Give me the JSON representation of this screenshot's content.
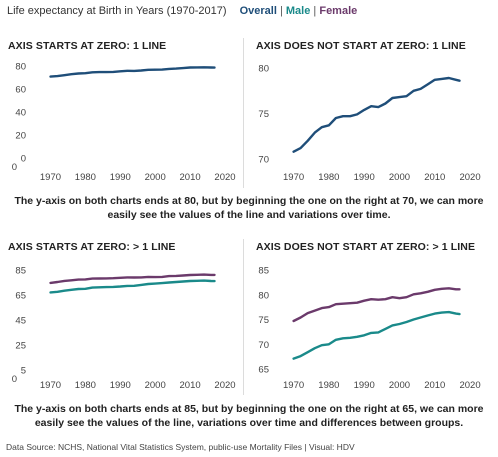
{
  "header": {
    "title": "Life expectancy at Birth in Years (1970-2017)",
    "legend": [
      {
        "label": "Overall",
        "color": "#1f4e79"
      },
      {
        "label": "Male",
        "color": "#1a8a8a"
      },
      {
        "label": "Female",
        "color": "#6b3a6b"
      }
    ],
    "separator": "|"
  },
  "captions": {
    "top": "The y-axis on both charts ends at 80, but by beginning the one on the right at 70, we can more easily see the values of the line and variations over time.",
    "bottom": "The y-axis on both charts ends at 85, but by beginning the one on the right at 65, we can more easily see the values of the line, variations over time and differences between groups."
  },
  "footer": "Data Source: NCHS, National Vital Statistics System, public-use Mortality Files  |  Visual: HDV",
  "chart_data": [
    {
      "type": "line",
      "title": "AXIS STARTS AT ZERO: 1 LINE",
      "xlim": [
        1967,
        2018
      ],
      "ylim": [
        0,
        80
      ],
      "yticks": [
        "80",
        "60",
        "40",
        "20",
        "0"
      ],
      "ytick_values": [
        80,
        60,
        40,
        20,
        0
      ],
      "xticks": [
        "1970",
        "1980",
        "1990",
        "2000",
        "2010",
        "2020"
      ],
      "xtick_values": [
        1970,
        1980,
        1990,
        2000,
        2010,
        2020
      ],
      "extra_label": "0",
      "series": [
        {
          "name": "Overall",
          "color": "#1f4e79",
          "x": [
            1970,
            1972,
            1974,
            1976,
            1978,
            1980,
            1982,
            1984,
            1986,
            1988,
            1990,
            1992,
            1994,
            1996,
            1998,
            2000,
            2002,
            2004,
            2006,
            2008,
            2010,
            2012,
            2014,
            2016,
            2017
          ],
          "y": [
            70.8,
            71.2,
            72.0,
            72.9,
            73.5,
            73.7,
            74.5,
            74.7,
            74.7,
            74.9,
            75.4,
            75.8,
            75.7,
            76.1,
            76.7,
            76.8,
            76.9,
            77.5,
            77.7,
            78.2,
            78.7,
            78.8,
            78.9,
            78.7,
            78.6
          ]
        }
      ]
    },
    {
      "type": "line",
      "title": "AXIS DOES NOT START AT ZERO: 1 LINE",
      "xlim": [
        1967,
        2018
      ],
      "ylim": [
        70,
        80
      ],
      "yticks": [
        "80",
        "75",
        "70"
      ],
      "ytick_values": [
        80,
        75,
        70
      ],
      "xticks": [
        "1970",
        "1980",
        "1990",
        "2000",
        "2010",
        "2020"
      ],
      "xtick_values": [
        1970,
        1980,
        1990,
        2000,
        2010,
        2020
      ],
      "series": [
        {
          "name": "Overall",
          "color": "#1f4e79",
          "x": [
            1970,
            1972,
            1974,
            1976,
            1978,
            1980,
            1982,
            1984,
            1986,
            1988,
            1990,
            1992,
            1994,
            1996,
            1998,
            2000,
            2002,
            2004,
            2006,
            2008,
            2010,
            2012,
            2014,
            2016,
            2017
          ],
          "y": [
            70.8,
            71.2,
            72.0,
            72.9,
            73.5,
            73.7,
            74.5,
            74.7,
            74.7,
            74.9,
            75.4,
            75.8,
            75.7,
            76.1,
            76.7,
            76.8,
            76.9,
            77.5,
            77.7,
            78.2,
            78.7,
            78.8,
            78.9,
            78.7,
            78.6
          ]
        }
      ]
    },
    {
      "type": "line",
      "title": "AXIS STARTS AT ZERO: > 1 LINE",
      "xlim": [
        1967,
        2018
      ],
      "ylim": [
        5,
        85
      ],
      "yticks": [
        "85",
        "65",
        "45",
        "25",
        "5"
      ],
      "ytick_values": [
        85,
        65,
        45,
        25,
        5
      ],
      "xticks": [
        "1970",
        "1980",
        "1990",
        "2000",
        "2010",
        "2020"
      ],
      "xtick_values": [
        1970,
        1980,
        1990,
        2000,
        2010,
        2020
      ],
      "extra_label": "0",
      "series": [
        {
          "name": "Female",
          "color": "#6b3a6b",
          "x": [
            1970,
            1972,
            1974,
            1976,
            1978,
            1980,
            1982,
            1984,
            1986,
            1988,
            1990,
            1992,
            1994,
            1996,
            1998,
            2000,
            2002,
            2004,
            2006,
            2008,
            2010,
            2012,
            2014,
            2016,
            2017
          ],
          "y": [
            74.7,
            75.4,
            76.3,
            76.8,
            77.3,
            77.5,
            78.1,
            78.2,
            78.3,
            78.4,
            78.8,
            79.1,
            79.0,
            79.1,
            79.5,
            79.3,
            79.5,
            80.1,
            80.3,
            80.6,
            81.0,
            81.2,
            81.3,
            81.1,
            81.1
          ]
        },
        {
          "name": "Male",
          "color": "#1a8a8a",
          "x": [
            1970,
            1972,
            1974,
            1976,
            1978,
            1980,
            1982,
            1984,
            1986,
            1988,
            1990,
            1992,
            1994,
            1996,
            1998,
            2000,
            2002,
            2004,
            2006,
            2008,
            2010,
            2012,
            2014,
            2016,
            2017
          ],
          "y": [
            67.1,
            67.6,
            68.4,
            69.2,
            69.8,
            70.0,
            70.9,
            71.2,
            71.3,
            71.5,
            71.8,
            72.3,
            72.4,
            73.1,
            73.8,
            74.1,
            74.5,
            75.0,
            75.4,
            75.8,
            76.2,
            76.4,
            76.5,
            76.2,
            76.1
          ]
        }
      ]
    },
    {
      "type": "line",
      "title": "AXIS DOES NOT START AT ZERO: > 1 LINE",
      "xlim": [
        1967,
        2018
      ],
      "ylim": [
        65,
        85
      ],
      "yticks": [
        "85",
        "80",
        "75",
        "70",
        "65"
      ],
      "ytick_values": [
        85,
        80,
        75,
        70,
        65
      ],
      "xticks": [
        "1970",
        "1980",
        "1990",
        "2000",
        "2010",
        "2020"
      ],
      "xtick_values": [
        1970,
        1980,
        1990,
        2000,
        2010,
        2020
      ],
      "series": [
        {
          "name": "Female",
          "color": "#6b3a6b",
          "x": [
            1970,
            1972,
            1974,
            1976,
            1978,
            1980,
            1982,
            1984,
            1986,
            1988,
            1990,
            1992,
            1994,
            1996,
            1998,
            2000,
            2002,
            2004,
            2006,
            2008,
            2010,
            2012,
            2014,
            2016,
            2017
          ],
          "y": [
            74.7,
            75.4,
            76.3,
            76.8,
            77.3,
            77.5,
            78.1,
            78.2,
            78.3,
            78.4,
            78.8,
            79.1,
            79.0,
            79.1,
            79.5,
            79.3,
            79.5,
            80.1,
            80.3,
            80.6,
            81.0,
            81.2,
            81.3,
            81.1,
            81.1
          ]
        },
        {
          "name": "Male",
          "color": "#1a8a8a",
          "x": [
            1970,
            1972,
            1974,
            1976,
            1978,
            1980,
            1982,
            1984,
            1986,
            1988,
            1990,
            1992,
            1994,
            1996,
            1998,
            2000,
            2002,
            2004,
            2006,
            2008,
            2010,
            2012,
            2014,
            2016,
            2017
          ],
          "y": [
            67.1,
            67.6,
            68.4,
            69.2,
            69.8,
            70.0,
            70.9,
            71.2,
            71.3,
            71.5,
            71.8,
            72.3,
            72.4,
            73.1,
            73.8,
            74.1,
            74.5,
            75.0,
            75.4,
            75.8,
            76.2,
            76.4,
            76.5,
            76.2,
            76.1
          ]
        }
      ]
    }
  ]
}
